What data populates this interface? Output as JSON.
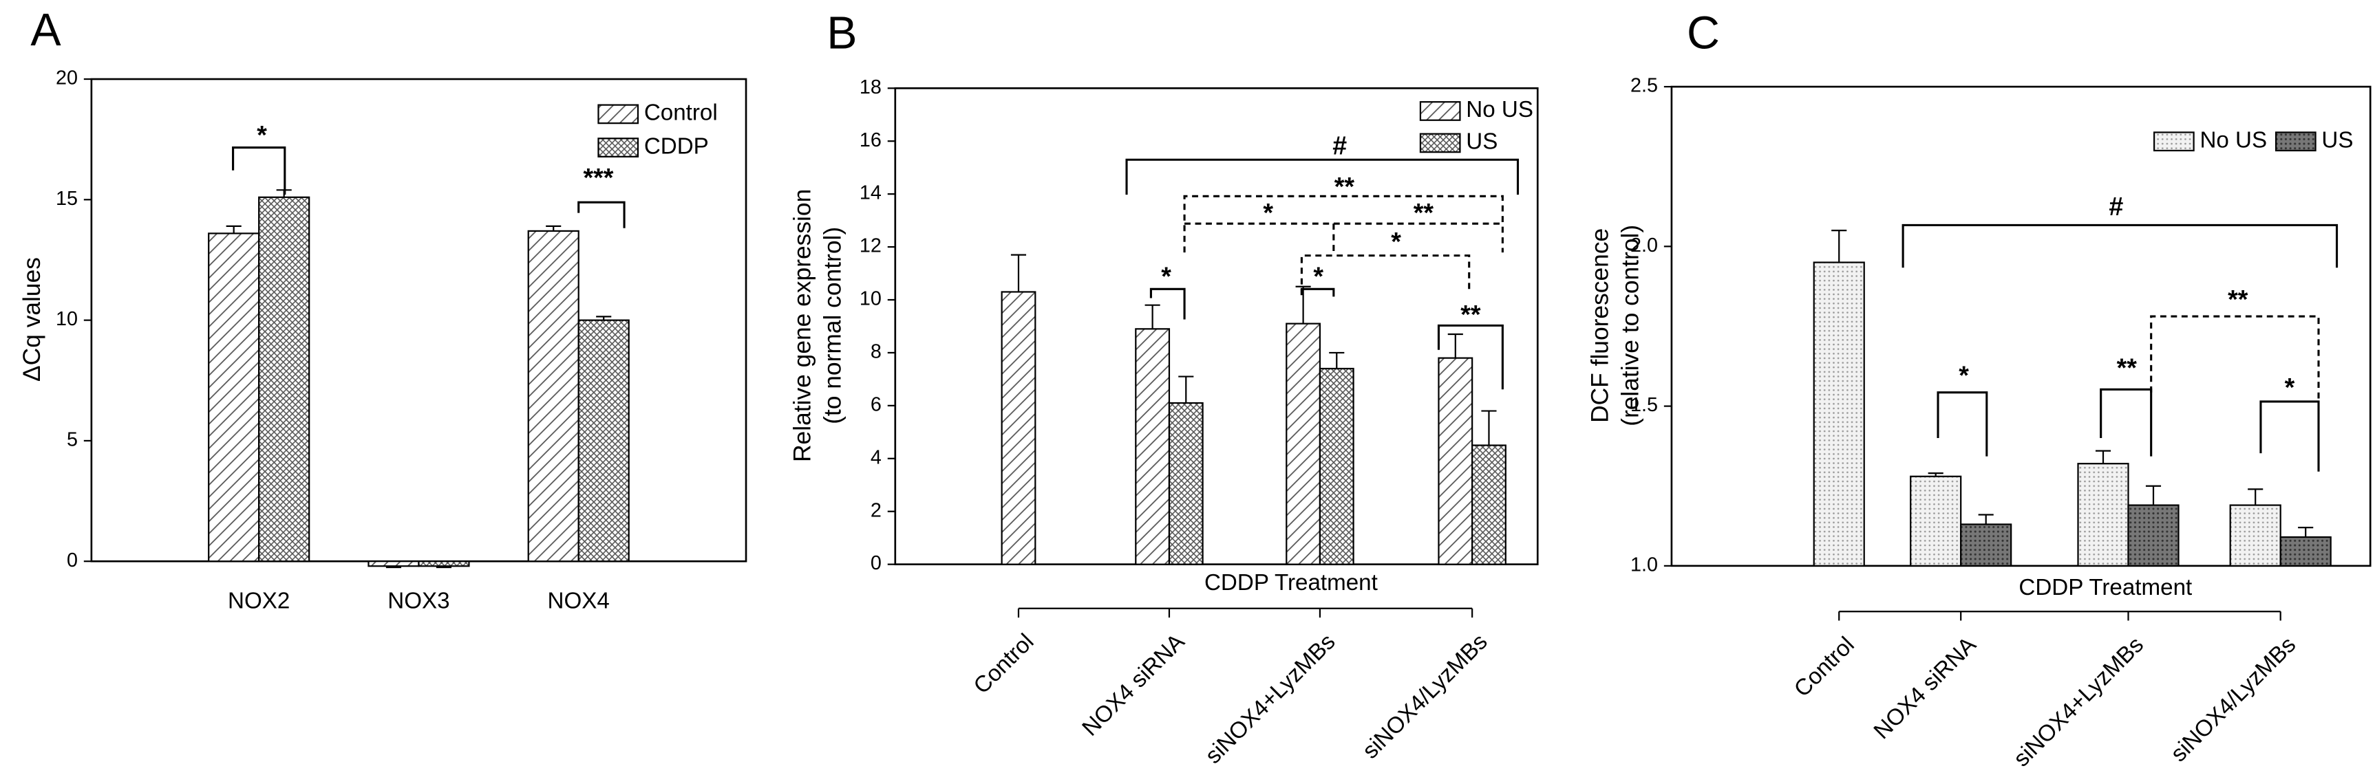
{
  "chart_data": [
    {
      "type": "bar",
      "panel_label": "A",
      "ylabel": "ΔCq values",
      "categories": [
        "NOX2",
        "NOX3",
        "NOX4"
      ],
      "series": [
        {
          "name": "Control",
          "color": "#555555",
          "pattern": "diagonal",
          "values": [
            13.6,
            -0.2,
            13.7
          ],
          "errors": [
            0.3,
            0.05,
            0.2
          ]
        },
        {
          "name": "CDDP",
          "color": "#555555",
          "pattern": "crosshatch",
          "values": [
            15.1,
            -0.2,
            10.0
          ],
          "errors": [
            0.3,
            0.05,
            0.15
          ]
        }
      ],
      "ylim": [
        0,
        20
      ],
      "yticks": [
        0,
        5,
        10,
        15,
        20
      ],
      "annotations": [
        "*",
        "***"
      ]
    },
    {
      "type": "bar",
      "panel_label": "B",
      "ylabel": [
        "Relative gene expression",
        "(to normal control)"
      ],
      "categories": [
        "Control",
        "NOX4 siRNA",
        "siNOX4+LyzMBs",
        "siNOX4/LyzMBs"
      ],
      "group_label": "CDDP Treatment",
      "series": [
        {
          "name": "No US",
          "color": "#555555",
          "pattern": "diagonal",
          "values": [
            10.3,
            8.9,
            9.1,
            7.8
          ],
          "errors": [
            1.4,
            0.9,
            1.4,
            0.9
          ]
        },
        {
          "name": "US",
          "color": "#555555",
          "pattern": "crosshatch",
          "values": [
            null,
            6.1,
            7.4,
            4.5
          ],
          "errors": [
            null,
            1.0,
            0.6,
            1.3
          ]
        }
      ],
      "ylim": [
        0,
        18
      ],
      "yticks": [
        0,
        2,
        4,
        6,
        8,
        10,
        12,
        14,
        16,
        18
      ],
      "annotations": [
        "#",
        "*",
        "**",
        "**",
        "*",
        "*",
        "*",
        "**"
      ]
    },
    {
      "type": "bar",
      "panel_label": "C",
      "ylabel": [
        "DCF fluorescence",
        "(relative to control)"
      ],
      "categories": [
        "Control",
        "NOX4 siRNA",
        "siNOX4+LyzMBs",
        "siNOX4/LyzMBs"
      ],
      "group_label": "CDDP Treatment",
      "series": [
        {
          "name": "No US",
          "color": "#cccccc",
          "pattern": "dots",
          "values": [
            1.95,
            1.28,
            1.32,
            1.19
          ],
          "errors": [
            0.1,
            0.01,
            0.04,
            0.05
          ]
        },
        {
          "name": "US",
          "color": "#555555",
          "pattern": "densedots",
          "values": [
            null,
            1.13,
            1.19,
            1.09
          ],
          "errors": [
            null,
            0.03,
            0.06,
            0.03
          ]
        }
      ],
      "ylim": [
        1.0,
        2.5
      ],
      "yticks": [
        {
          "value": 1.0,
          "label": "1.0"
        },
        {
          "value": 1.5,
          "label": "1.5"
        },
        {
          "value": 2.0,
          "label": "2.0"
        },
        {
          "value": 2.5,
          "label": "2.5"
        }
      ],
      "annotations": [
        "#",
        "**",
        "*",
        "**",
        "*"
      ]
    }
  ]
}
